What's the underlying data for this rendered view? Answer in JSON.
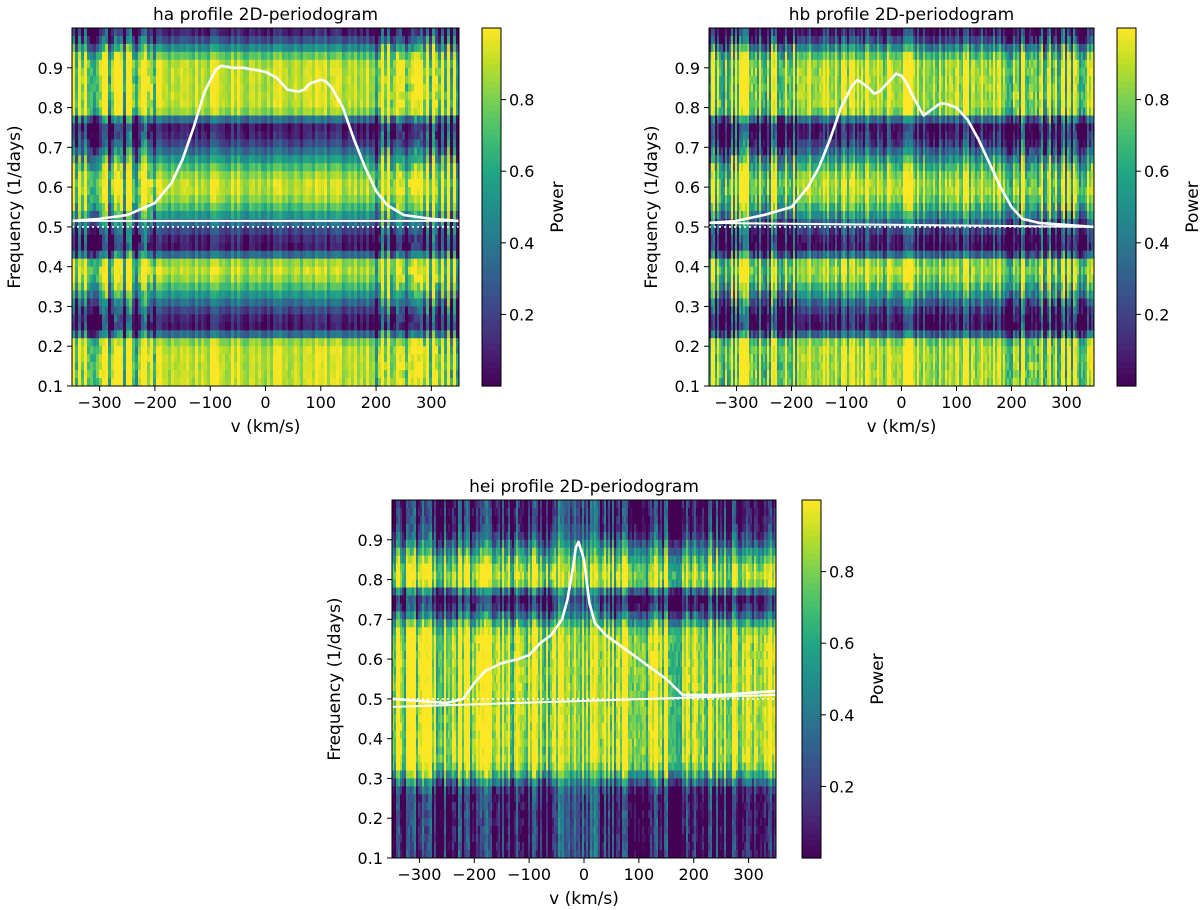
{
  "chart_data": [
    {
      "type": "heatmap",
      "id": "ha",
      "title": "ha profile 2D-periodogram",
      "xlabel": "v (km/s)",
      "ylabel": "Frequency (1/days)",
      "colorbar_label": "Power",
      "colormap": "viridis",
      "xlim": [
        -350,
        350
      ],
      "ylim": [
        0.1,
        1.0
      ],
      "clim": [
        0.0,
        1.0
      ],
      "xticks": [
        -300,
        -200,
        -100,
        0,
        100,
        200,
        300
      ],
      "xtick_labels": [
        "−300",
        "−200",
        "−100",
        "0",
        "100",
        "200",
        "300"
      ],
      "yticks": [
        0.1,
        0.2,
        0.3,
        0.4,
        0.5,
        0.6,
        0.7,
        0.8,
        0.9
      ],
      "ytick_labels": [
        "0.1",
        "0.2",
        "0.3",
        "0.4",
        "0.5",
        "0.6",
        "0.7",
        "0.8",
        "0.9"
      ],
      "cbar_ticks": [
        0.2,
        0.4,
        0.6,
        0.8
      ],
      "cbar_tick_labels": [
        "0.2",
        "0.4",
        "0.6",
        "0.8"
      ],
      "noise": 0.18,
      "stripe_width": 3,
      "wing_noise_from": 200,
      "high_power_bands": [
        0.1,
        0.2,
        0.4,
        0.6,
        0.8,
        0.9
      ],
      "low_power_bands": [
        0.0,
        0.25,
        0.45,
        0.75,
        1.0
      ],
      "dotted_line_y": 0.5,
      "baseline": {
        "x": [
          -350,
          350
        ],
        "y": [
          0.515,
          0.515
        ]
      },
      "line_profile": {
        "x": [
          -350,
          -300,
          -250,
          -200,
          -170,
          -150,
          -130,
          -110,
          -90,
          -80,
          -60,
          -40,
          -20,
          0,
          20,
          40,
          60,
          70,
          80,
          100,
          110,
          120,
          140,
          160,
          180,
          200,
          220,
          250,
          300,
          350
        ],
        "y": [
          0.515,
          0.52,
          0.53,
          0.56,
          0.61,
          0.67,
          0.75,
          0.84,
          0.895,
          0.905,
          0.9,
          0.9,
          0.895,
          0.89,
          0.875,
          0.845,
          0.84,
          0.845,
          0.86,
          0.87,
          0.865,
          0.85,
          0.8,
          0.72,
          0.65,
          0.59,
          0.555,
          0.53,
          0.52,
          0.515
        ]
      }
    },
    {
      "type": "heatmap",
      "id": "hb",
      "title": "hb profile 2D-periodogram",
      "xlabel": "v (km/s)",
      "ylabel": "Frequency (1/days)",
      "colorbar_label": "Power",
      "colormap": "viridis",
      "xlim": [
        -350,
        350
      ],
      "ylim": [
        0.1,
        1.0
      ],
      "clim": [
        0.0,
        1.0
      ],
      "xticks": [
        -300,
        -200,
        -100,
        0,
        100,
        200,
        300
      ],
      "xtick_labels": [
        "−300",
        "−200",
        "−100",
        "0",
        "100",
        "200",
        "300"
      ],
      "yticks": [
        0.1,
        0.2,
        0.3,
        0.4,
        0.5,
        0.6,
        0.7,
        0.8,
        0.9
      ],
      "ytick_labels": [
        "0.1",
        "0.2",
        "0.3",
        "0.4",
        "0.5",
        "0.6",
        "0.7",
        "0.8",
        "0.9"
      ],
      "cbar_ticks": [
        0.2,
        0.4,
        0.6,
        0.8
      ],
      "cbar_tick_labels": [
        "0.2",
        "0.4",
        "0.6",
        "0.8"
      ],
      "noise": 0.4,
      "stripe_width": 2,
      "wing_noise_from": 190,
      "high_power_bands": [
        0.1,
        0.2,
        0.4,
        0.6,
        0.8,
        0.9
      ],
      "low_power_bands": [
        0.0,
        0.25,
        0.45,
        0.75,
        1.0
      ],
      "dotted_line_y": 0.5,
      "baseline": {
        "x": [
          -350,
          350
        ],
        "y": [
          0.51,
          0.5
        ]
      },
      "line_profile": {
        "x": [
          -350,
          -300,
          -250,
          -200,
          -170,
          -150,
          -130,
          -110,
          -90,
          -80,
          -60,
          -50,
          -40,
          -20,
          -10,
          0,
          10,
          20,
          40,
          60,
          70,
          80,
          90,
          100,
          120,
          140,
          160,
          180,
          200,
          220,
          250,
          300,
          350
        ],
        "y": [
          0.51,
          0.515,
          0.53,
          0.55,
          0.6,
          0.65,
          0.72,
          0.8,
          0.855,
          0.87,
          0.85,
          0.835,
          0.84,
          0.87,
          0.885,
          0.88,
          0.86,
          0.83,
          0.78,
          0.8,
          0.81,
          0.81,
          0.805,
          0.8,
          0.77,
          0.72,
          0.66,
          0.6,
          0.55,
          0.52,
          0.51,
          0.505,
          0.5
        ]
      }
    },
    {
      "type": "heatmap",
      "id": "hei",
      "title": "hei profile 2D-periodogram",
      "xlabel": "v (km/s)",
      "ylabel": "Frequency (1/days)",
      "colorbar_label": "Power",
      "colormap": "viridis",
      "xlim": [
        -350,
        350
      ],
      "ylim": [
        0.1,
        1.0
      ],
      "clim": [
        0.0,
        1.0
      ],
      "xticks": [
        -300,
        -200,
        -100,
        0,
        100,
        200,
        300
      ],
      "xtick_labels": [
        "−300",
        "−200",
        "−100",
        "0",
        "100",
        "200",
        "300"
      ],
      "yticks": [
        0.1,
        0.2,
        0.3,
        0.4,
        0.5,
        0.6,
        0.7,
        0.8,
        0.9
      ],
      "ytick_labels": [
        "0.1",
        "0.2",
        "0.3",
        "0.4",
        "0.5",
        "0.6",
        "0.7",
        "0.8",
        "0.9"
      ],
      "cbar_ticks": [
        0.2,
        0.4,
        0.6,
        0.8
      ],
      "cbar_tick_labels": [
        "0.2",
        "0.4",
        "0.6",
        "0.8"
      ],
      "noise": 0.55,
      "stripe_width": 2,
      "wing_noise_from": 400,
      "high_power_bands": [
        0.35,
        0.55,
        0.65,
        0.8
      ],
      "low_power_bands": [
        0.15,
        0.25,
        0.75,
        0.95
      ],
      "dotted_line_y": 0.5,
      "baseline": {
        "x": [
          -350,
          350
        ],
        "y": [
          0.48,
          0.51
        ]
      },
      "line_profile": {
        "x": [
          -350,
          -300,
          -250,
          -220,
          -200,
          -180,
          -150,
          -120,
          -100,
          -80,
          -60,
          -40,
          -30,
          -20,
          -15,
          -10,
          0,
          10,
          20,
          40,
          60,
          80,
          100,
          120,
          150,
          180,
          200,
          250,
          300,
          350
        ],
        "y": [
          0.5,
          0.495,
          0.49,
          0.5,
          0.54,
          0.57,
          0.59,
          0.6,
          0.61,
          0.64,
          0.66,
          0.7,
          0.75,
          0.83,
          0.88,
          0.895,
          0.85,
          0.74,
          0.69,
          0.66,
          0.64,
          0.62,
          0.6,
          0.58,
          0.55,
          0.51,
          0.51,
          0.51,
          0.515,
          0.52
        ]
      }
    }
  ]
}
